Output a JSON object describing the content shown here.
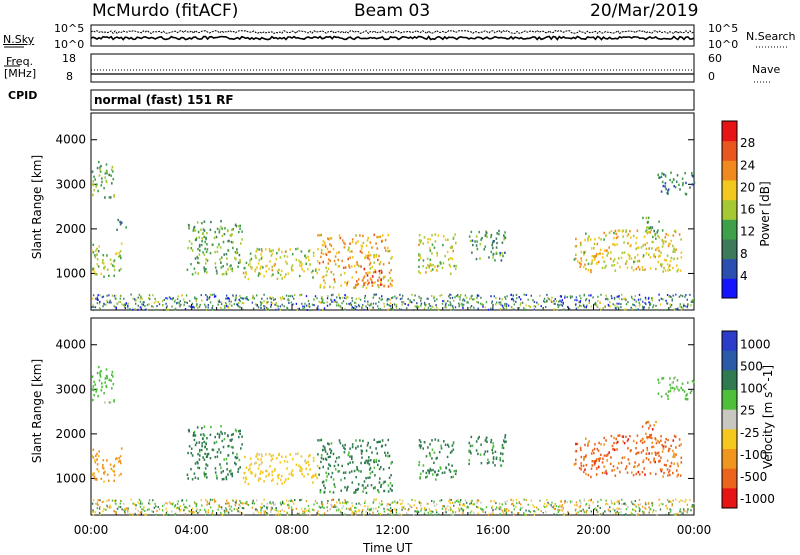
{
  "header": {
    "station": "McMurdo (fitACF)",
    "beam": "Beam 03",
    "date": "20/Mar/2019"
  },
  "noise_panel": {
    "left_label": "N.Sky",
    "left_ticks": [
      "10^5",
      "10^0"
    ],
    "right_ticks": [
      "10^5",
      "10^0"
    ],
    "right_label": "N.Search"
  },
  "freq_panel": {
    "left_label_1": "Freq.",
    "left_label_2": "[MHz]",
    "left_ticks": [
      "18",
      "8"
    ],
    "right_ticks": [
      "60",
      "0"
    ],
    "right_label": "Nave"
  },
  "cpid": {
    "label": "CPID",
    "mode": "normal (fast) 151 RF"
  },
  "colors": {
    "power_scale": [
      "#1414ff",
      "#2a4fb0",
      "#3c7a5a",
      "#3fa04a",
      "#a6c832",
      "#f2c81e",
      "#f08a1e",
      "#e8581e",
      "#e61414"
    ],
    "velocity_scale": [
      "#2a3cc8",
      "#2a5aa8",
      "#2f7a4f",
      "#4fbf3a",
      "#c8c8c0",
      "#f5c81e",
      "#f0961e",
      "#eb641e",
      "#e61414"
    ]
  },
  "chart_data": [
    {
      "type": "heatmap",
      "quantity": "power",
      "ylabel": "Slant Range [km]",
      "ylim": [
        180,
        4600
      ],
      "xlim": [
        "00:00",
        "24:00"
      ],
      "yticks": [
        1000,
        2000,
        3000,
        4000
      ],
      "colorbar_label": "Power [dB]",
      "colorbar_ticks": [
        "4",
        "8",
        "12",
        "16",
        "20",
        "24",
        "28"
      ],
      "colorbar_range": [
        0,
        30
      ],
      "blobs": [
        {
          "t0": 0.0,
          "t1": 0.9,
          "r0": 2700,
          "r1": 3550,
          "v": 12
        },
        {
          "t0": 0.0,
          "t1": 1.2,
          "r0": 950,
          "r1": 1700,
          "v": 14
        },
        {
          "t0": 1.0,
          "t1": 1.4,
          "r0": 2000,
          "r1": 2300,
          "v": 8
        },
        {
          "t0": 3.8,
          "t1": 6.0,
          "r0": 1000,
          "r1": 2200,
          "v": 12
        },
        {
          "t0": 6.0,
          "t1": 9.0,
          "r0": 900,
          "r1": 1600,
          "v": 16
        },
        {
          "t0": 9.0,
          "t1": 12.0,
          "r0": 700,
          "r1": 1900,
          "v": 20
        },
        {
          "t0": 10.8,
          "t1": 11.6,
          "r0": 750,
          "r1": 1150,
          "v": 28
        },
        {
          "t0": 13.0,
          "t1": 14.5,
          "r0": 1000,
          "r1": 1900,
          "v": 16
        },
        {
          "t0": 15.0,
          "t1": 16.5,
          "r0": 1300,
          "r1": 2000,
          "v": 10
        },
        {
          "t0": 19.2,
          "t1": 23.5,
          "r0": 1050,
          "r1": 2000,
          "v": 18
        },
        {
          "t0": 21.8,
          "t1": 22.6,
          "r0": 1800,
          "r1": 2300,
          "v": 12
        },
        {
          "t0": 22.5,
          "t1": 24.0,
          "r0": 2800,
          "r1": 3300,
          "v": 8
        }
      ]
    },
    {
      "type": "heatmap",
      "quantity": "velocity",
      "ylabel": "Slant Range [km]",
      "ylim": [
        180,
        4600
      ],
      "xlim": [
        "00:00",
        "24:00"
      ],
      "yticks": [
        1000,
        2000,
        3000,
        4000
      ],
      "xticks": [
        "00:00",
        "04:00",
        "08:00",
        "12:00",
        "16:00",
        "20:00",
        "00:00"
      ],
      "xlabel": "Time UT",
      "colorbar_label": "Velocity [m s^-1]",
      "colorbar_ticks": [
        "1000",
        "500",
        "100",
        "25",
        "-25",
        "-100",
        "-500",
        "-1000"
      ],
      "blobs": [
        {
          "t0": 0.0,
          "t1": 0.9,
          "r0": 2700,
          "r1": 3550,
          "v": 25
        },
        {
          "t0": 0.0,
          "t1": 1.2,
          "r0": 950,
          "r1": 1700,
          "v": -100
        },
        {
          "t0": 3.8,
          "t1": 6.0,
          "r0": 1000,
          "r1": 2200,
          "v": 100
        },
        {
          "t0": 6.0,
          "t1": 9.0,
          "r0": 900,
          "r1": 1600,
          "v": -25
        },
        {
          "t0": 9.0,
          "t1": 12.0,
          "r0": 700,
          "r1": 1900,
          "v": 100
        },
        {
          "t0": 13.0,
          "t1": 14.5,
          "r0": 1000,
          "r1": 1900,
          "v": 100
        },
        {
          "t0": 15.0,
          "t1": 16.5,
          "r0": 1300,
          "r1": 2000,
          "v": 100
        },
        {
          "t0": 19.2,
          "t1": 23.5,
          "r0": 1050,
          "r1": 2000,
          "v": -500
        },
        {
          "t0": 21.8,
          "t1": 22.6,
          "r0": 1800,
          "r1": 2300,
          "v": -500
        },
        {
          "t0": 22.5,
          "t1": 24.0,
          "r0": 2800,
          "r1": 3300,
          "v": 25
        }
      ]
    }
  ]
}
